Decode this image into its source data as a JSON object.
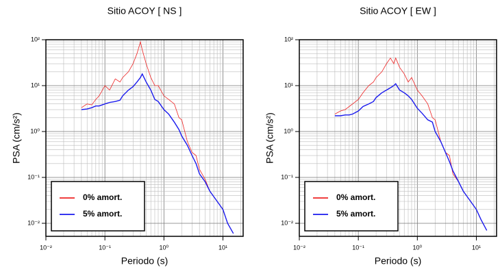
{
  "chart_data": [
    {
      "type": "line",
      "title": "Sitio ACOY [ NS ]",
      "xlabel": "Periodo (s)",
      "ylabel": "PSA (cm/s²)",
      "xscale": "log",
      "yscale": "log",
      "grid": true,
      "minor_grid": true,
      "legend": "lower left",
      "xlim": [
        0.01,
        22
      ],
      "ylim": [
        0.0052,
        100
      ],
      "xticks": [
        {
          "value": 0.01,
          "label": "10⁻²"
        },
        {
          "value": 0.1,
          "label": "10⁻¹"
        },
        {
          "value": 1,
          "label": "10⁰"
        },
        {
          "value": 10,
          "label": "10¹"
        }
      ],
      "yticks": [
        {
          "value": 0.01,
          "label": "10⁻²"
        },
        {
          "value": 0.1,
          "label": "10⁻¹"
        },
        {
          "value": 1,
          "label": "10⁰"
        },
        {
          "value": 10,
          "label": "10¹"
        },
        {
          "value": 100,
          "label": "10²"
        }
      ],
      "x": [
        0.04,
        0.05,
        0.06,
        0.07,
        0.08,
        0.1,
        0.12,
        0.15,
        0.18,
        0.2,
        0.25,
        0.3,
        0.35,
        0.4,
        0.43,
        0.5,
        0.6,
        0.7,
        0.8,
        1,
        1.2,
        1.5,
        1.8,
        2,
        2.5,
        3,
        3.5,
        4,
        5,
        6,
        8,
        10,
        12,
        15
      ],
      "series": [
        {
          "name": "0% amort.",
          "color": "#ee2222",
          "width": 0.8,
          "values": [
            3.3,
            4,
            3.8,
            5,
            6,
            10,
            8,
            14,
            12,
            15,
            20,
            30,
            50,
            90,
            60,
            30,
            15,
            10,
            10,
            6,
            5,
            4,
            2,
            1.8,
            0.6,
            0.35,
            0.3,
            0.15,
            0.09,
            0.05,
            0.03,
            0.02,
            0.01,
            0.006
          ]
        },
        {
          "name": "5% amort.",
          "color": "#1a1aee",
          "width": 1.4,
          "values": [
            3,
            3.1,
            3.3,
            3.6,
            3.6,
            4,
            4.3,
            4.5,
            4.8,
            6,
            8,
            9.5,
            12,
            15,
            18,
            12,
            8,
            5,
            4.5,
            3,
            2.4,
            1.6,
            1.1,
            0.8,
            0.5,
            0.3,
            0.2,
            0.12,
            0.08,
            0.05,
            0.03,
            0.02,
            0.01,
            0.006
          ]
        }
      ]
    },
    {
      "type": "line",
      "title": "Sitio ACOY [ EW ]",
      "xlabel": "Periodo (s)",
      "ylabel": "PSA (cm/s²)",
      "xscale": "log",
      "yscale": "log",
      "grid": true,
      "minor_grid": true,
      "legend": "lower left",
      "xlim": [
        0.01,
        22
      ],
      "ylim": [
        0.0052,
        100
      ],
      "xticks": [
        {
          "value": 0.01,
          "label": "10⁻²"
        },
        {
          "value": 0.1,
          "label": "10⁻¹"
        },
        {
          "value": 1,
          "label": "10⁰"
        },
        {
          "value": 10,
          "label": "10¹"
        }
      ],
      "yticks": [
        {
          "value": 0.01,
          "label": "10⁻²"
        },
        {
          "value": 0.1,
          "label": "10⁻¹"
        },
        {
          "value": 1,
          "label": "10⁰"
        },
        {
          "value": 10,
          "label": "10¹"
        },
        {
          "value": 100,
          "label": "10²"
        }
      ],
      "x": [
        0.04,
        0.05,
        0.06,
        0.07,
        0.08,
        0.1,
        0.12,
        0.15,
        0.18,
        0.2,
        0.25,
        0.3,
        0.35,
        0.4,
        0.43,
        0.5,
        0.6,
        0.7,
        0.8,
        1,
        1.2,
        1.5,
        1.8,
        2,
        2.5,
        3,
        3.5,
        4,
        5,
        6,
        8,
        10,
        12,
        15
      ],
      "series": [
        {
          "name": "0% amort.",
          "color": "#ee2222",
          "width": 0.8,
          "values": [
            2.4,
            2.8,
            3,
            3.5,
            4,
            5,
            7,
            10,
            12,
            15,
            20,
            30,
            40,
            30,
            40,
            25,
            18,
            12,
            15,
            8,
            6,
            4,
            2,
            1.8,
            0.6,
            0.35,
            0.3,
            0.12,
            0.08,
            0.05,
            0.03,
            0.02,
            0.012,
            0.007
          ]
        },
        {
          "name": "5% amort.",
          "color": "#1a1aee",
          "width": 1.4,
          "values": [
            2.2,
            2.2,
            2.3,
            2.3,
            2.4,
            2.8,
            3.5,
            4,
            4.5,
            5.5,
            7,
            8,
            9,
            10,
            11,
            8,
            7,
            6,
            5,
            3.2,
            2.5,
            1.8,
            1.6,
            1,
            0.6,
            0.35,
            0.22,
            0.14,
            0.08,
            0.05,
            0.03,
            0.02,
            0.012,
            0.007
          ]
        }
      ]
    }
  ]
}
